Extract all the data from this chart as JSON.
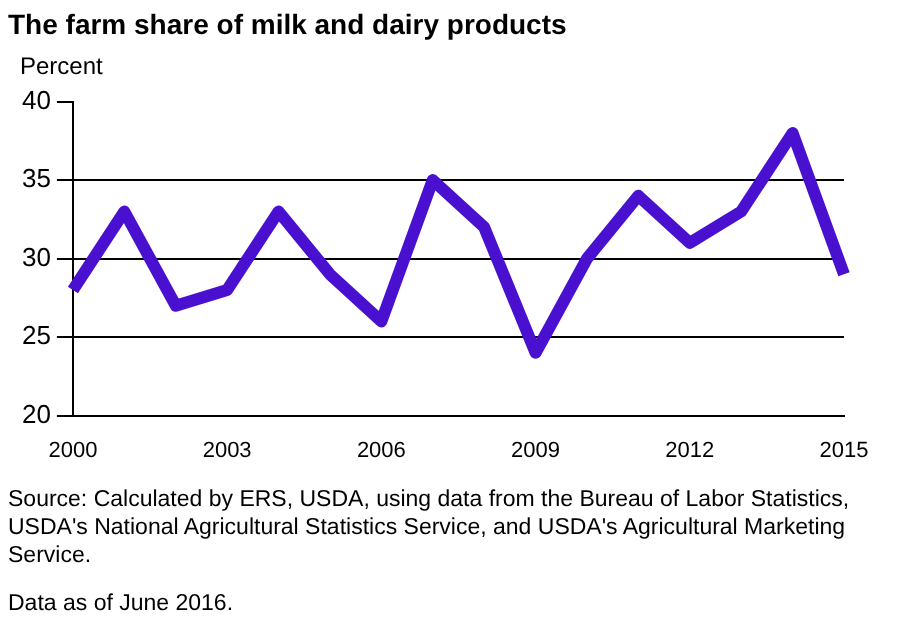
{
  "chart_data": {
    "type": "line",
    "title": "The farm share of milk and dairy products",
    "ylabel": "Percent",
    "x": [
      2000,
      2001,
      2002,
      2003,
      2004,
      2005,
      2006,
      2007,
      2008,
      2009,
      2010,
      2011,
      2012,
      2013,
      2014,
      2015
    ],
    "series": [
      {
        "color": "#4a10d0",
        "values": [
          28,
          33,
          27,
          28,
          33,
          29,
          26,
          35,
          32,
          24,
          30,
          34,
          31,
          33,
          38,
          29
        ]
      }
    ],
    "xlim": [
      2000,
      2015
    ],
    "xticks": [
      2000,
      2003,
      2006,
      2009,
      2012,
      2015
    ],
    "ylim": [
      20,
      40
    ],
    "yticks": [
      20,
      25,
      30,
      35,
      40
    ],
    "grid": "y",
    "marker": "none",
    "line_style": "solid",
    "annotations": [
      "Source: Calculated by ERS, USDA, using data from the Bureau of Labor Statistics, USDA's National Agricultural Statistics Service, and USDA's Agricultural Marketing Service.",
      "Data as of June 2016."
    ]
  }
}
